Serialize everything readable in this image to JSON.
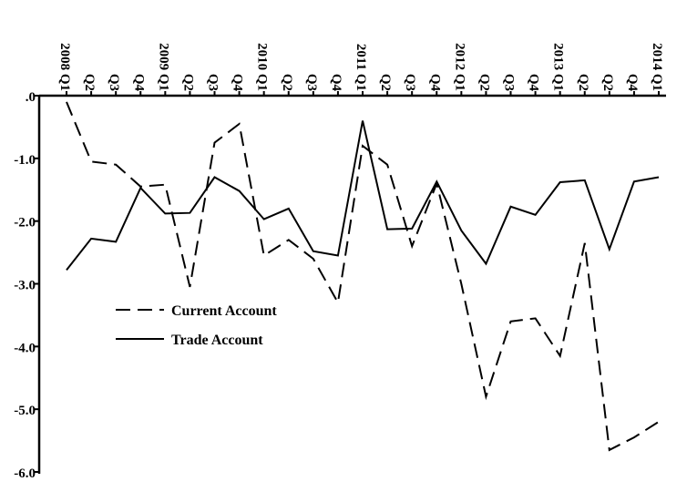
{
  "chart_data": {
    "type": "line",
    "title": "",
    "xlabel": "",
    "ylabel": "",
    "x_ticks": [
      "2008 Q1",
      "Q2",
      "Q3",
      "Q4",
      "2009 Q1",
      "Q2",
      "Q3",
      "Q4",
      "2010 Q1",
      "Q2",
      "Q3",
      "Q4",
      "2011 Q1",
      "Q2",
      "Q3",
      "Q4",
      "2012 Q1",
      "Q2",
      "Q3",
      "Q4",
      "2013 Q1",
      "Q2",
      "Q2",
      "Q4",
      "2014 Q1"
    ],
    "y_ticks": [
      ".0",
      "-1.0",
      "-2.0",
      "-3.0",
      "-4.0",
      "-5.0",
      "-6.0"
    ],
    "y_tick_values": [
      0,
      -1,
      -2,
      -3,
      -4,
      -5,
      -6
    ],
    "ylim": [
      -6.0,
      0.0
    ],
    "grid": false,
    "legend_position": "lower-left",
    "x_axis_position": "top",
    "series": [
      {
        "name": "Current Account",
        "dash": "dashed",
        "color": "#000000",
        "values": [
          -0.1,
          -1.05,
          -1.1,
          -1.45,
          -1.42,
          -3.05,
          -0.75,
          -0.45,
          -2.55,
          -2.3,
          -2.6,
          -3.3,
          -0.8,
          -1.1,
          -2.4,
          -1.4,
          -3.0,
          -4.8,
          -3.6,
          -3.55,
          -4.15,
          -2.35,
          -5.65,
          -5.45,
          -5.2
        ]
      },
      {
        "name": "Trade Account",
        "dash": "solid",
        "color": "#000000",
        "values": [
          -2.78,
          -2.28,
          -2.33,
          -1.47,
          -1.88,
          -1.87,
          -1.3,
          -1.52,
          -1.97,
          -1.8,
          -2.48,
          -2.55,
          -0.4,
          -2.13,
          -2.12,
          -1.37,
          -2.15,
          -2.68,
          -1.77,
          -1.9,
          -1.38,
          -1.35,
          -2.45,
          -1.37,
          -1.3
        ]
      }
    ]
  }
}
